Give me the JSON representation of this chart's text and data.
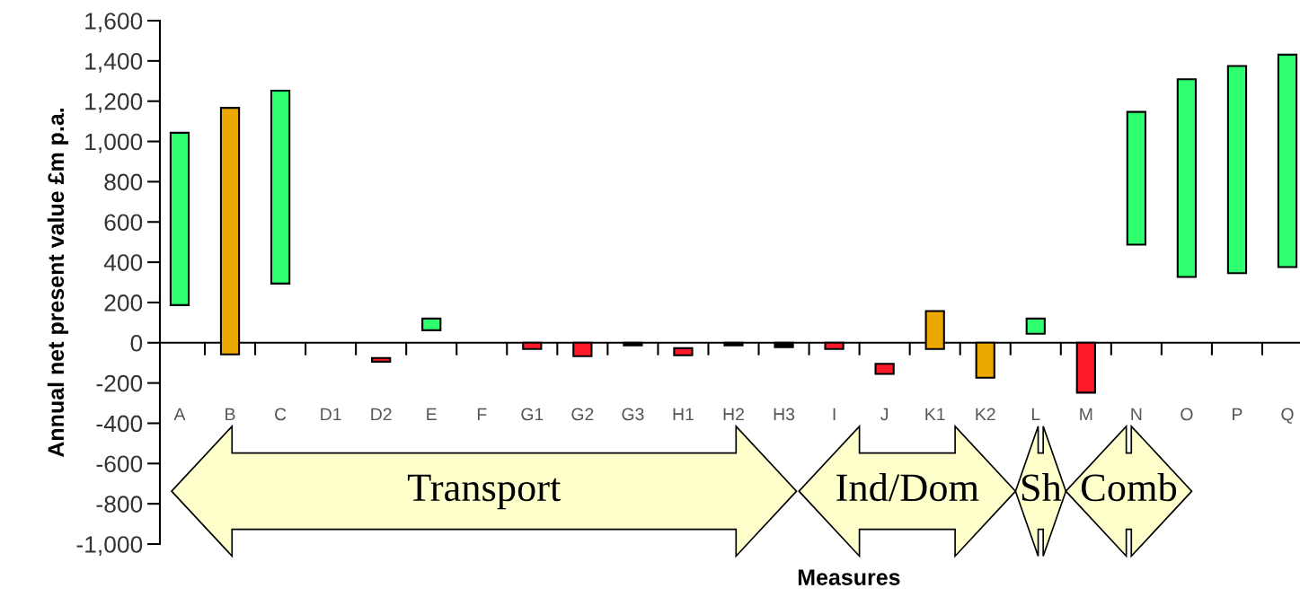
{
  "chart_data": {
    "type": "bar",
    "xlabel": "Measures",
    "ylabel": "Annual net present value £m p.a.",
    "categories": [
      "A",
      "B",
      "C",
      "D1",
      "D2",
      "E",
      "F",
      "G1",
      "G2",
      "G3",
      "H1",
      "H2",
      "H3",
      "I",
      "J",
      "K1",
      "K2",
      "L",
      "M",
      "N",
      "O",
      "P",
      "Q"
    ],
    "base": [
      187,
      -58,
      294,
      null,
      -94,
      62,
      null,
      -31,
      -67,
      -13,
      -62,
      -13,
      -22,
      -31,
      -155,
      -31,
      -174,
      45,
      -248,
      487,
      327,
      346,
      376
    ],
    "values": [
      856,
      1225,
      958,
      null,
      18,
      58,
      null,
      31,
      67,
      13,
      35,
      13,
      22,
      31,
      50,
      188,
      174,
      75,
      248,
      660,
      982,
      1029,
      1055
    ],
    "colors": [
      "#2dff6e",
      "#eda800",
      "#2dff6e",
      null,
      "#ff1a2a",
      "#2dff6e",
      null,
      "#ff1a2a",
      "#ff1a2a",
      "#000000",
      "#ff1a2a",
      "#000000",
      "#000000",
      "#ff1a2a",
      "#ff1a2a",
      "#eda800",
      "#eda800",
      "#2dff6e",
      "#ff1a2a",
      "#2dff6e",
      "#2dff6e",
      "#2dff6e",
      "#2dff6e"
    ],
    "ylim": [
      -1000,
      1600
    ],
    "yticks": [
      {
        "value": -1000,
        "label": "-1,000"
      },
      {
        "value": -800,
        "label": "-800"
      },
      {
        "value": -600,
        "label": "-600"
      },
      {
        "value": -400,
        "label": "-400"
      },
      {
        "value": -200,
        "label": "-200"
      },
      0,
      200,
      400,
      600,
      800,
      {
        "value": 1000,
        "label": "1,000"
      },
      {
        "value": 1200,
        "label": "1,200"
      },
      {
        "value": 1400,
        "label": "1,400"
      },
      {
        "value": 1600,
        "label": "1,600"
      }
    ],
    "legend": false,
    "annotations": [
      "Transport",
      "Ind/Dom",
      "Sh",
      "Comb"
    ]
  }
}
